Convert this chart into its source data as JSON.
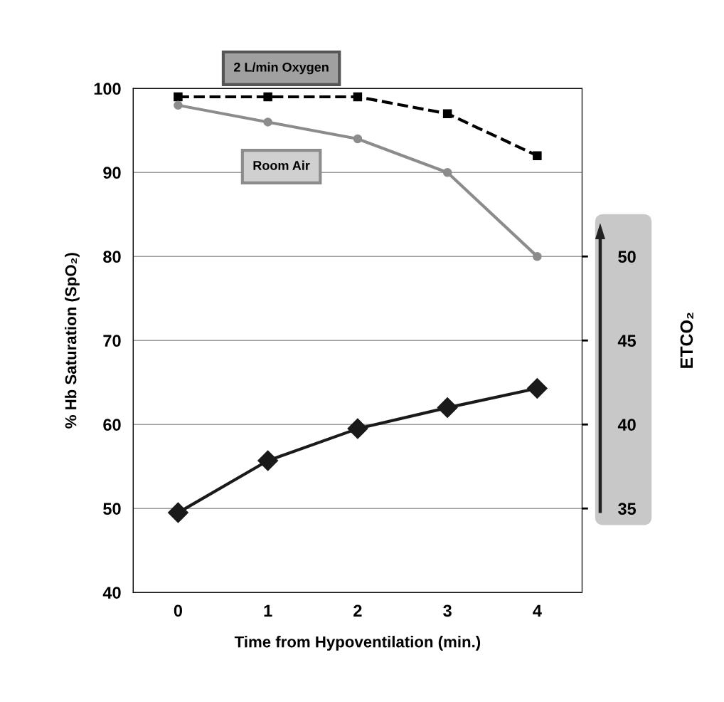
{
  "chart_data": {
    "type": "line",
    "xlabel": "Time from Hypoventilation (min.)",
    "ylabel": "% Hb Saturation (SpO₂)",
    "y2label": "ETCO₂",
    "categories": [
      "0",
      "1",
      "2",
      "3",
      "4"
    ],
    "series": [
      {
        "name": "2 L/min Oxygen",
        "color": "#000000",
        "values": [
          99,
          99,
          99,
          97,
          92
        ],
        "marker": "square",
        "line_style": "dashed"
      },
      {
        "name": "Room Air",
        "color": "#8c8c8c",
        "values": [
          98,
          96,
          94,
          90,
          80
        ],
        "marker": "circle",
        "line_style": "solid"
      },
      {
        "color": "#1a1a1a",
        "values": [
          34.75,
          37.85,
          39.75,
          41,
          42.15
        ],
        "marker": "diamond",
        "line_style": "solid",
        "axis": "y2"
      }
    ],
    "ylim": [
      40,
      100
    ],
    "yticks": [
      40,
      50,
      60,
      70,
      80,
      90,
      100
    ],
    "y2lim": [
      30,
      60
    ],
    "y2ticks": [
      35,
      40,
      45,
      50
    ],
    "grid": "y"
  }
}
